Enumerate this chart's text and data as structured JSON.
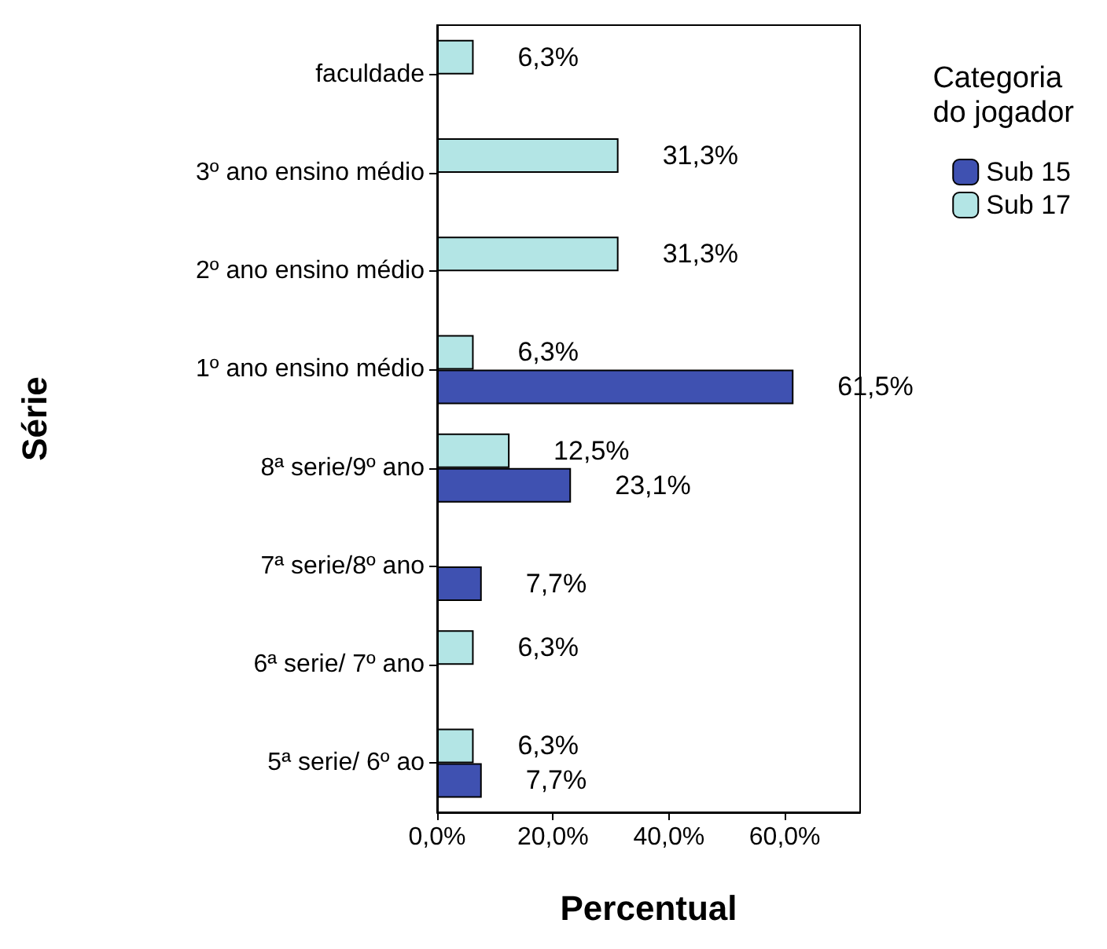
{
  "chart_data": {
    "type": "bar",
    "orientation": "horizontal",
    "xlabel": "Percentual",
    "ylabel": "Série",
    "legend_title": "Categoria\ndo jogador",
    "legend": "right",
    "grid": false,
    "categories": [
      "faculdade",
      "3º ano ensino médio",
      "2º ano ensino médio",
      "1º ano ensino médio",
      "8ª serie/9º ano",
      "7ª serie/8º ano",
      "6ª serie/ 7º ano",
      "5ª serie/ 6º ao"
    ],
    "xlim": [
      0,
      73
    ],
    "xticks": [
      {
        "value": 0,
        "label": "0,0%"
      },
      {
        "value": 20,
        "label": "20,0%"
      },
      {
        "value": 40,
        "label": "40,0%"
      },
      {
        "value": 60,
        "label": "60,0%"
      }
    ],
    "series": [
      {
        "name": "Sub 15",
        "color": "#3f51b1",
        "values": [
          null,
          null,
          null,
          61.5,
          23.1,
          7.7,
          null,
          7.7
        ],
        "value_labels": [
          null,
          null,
          null,
          "61,5%",
          "23,1%",
          "7,7%",
          null,
          "7,7%"
        ]
      },
      {
        "name": "Sub 17",
        "color": "#b3e5e5",
        "values": [
          6.3,
          31.3,
          31.3,
          6.3,
          12.5,
          null,
          6.3,
          6.3
        ],
        "value_labels": [
          "6,3%",
          "31,3%",
          "31,3%",
          "6,3%",
          "12,5%",
          null,
          "6,3%",
          "6,3%"
        ]
      }
    ]
  }
}
